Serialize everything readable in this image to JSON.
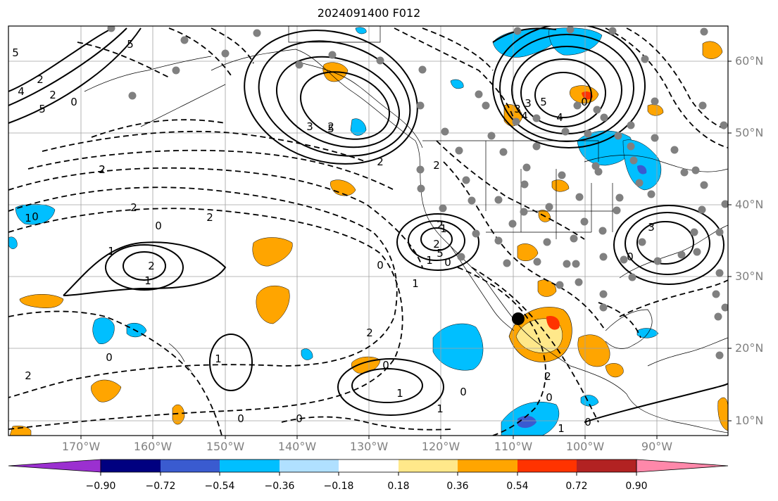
{
  "title": "2024091400 F012",
  "longitude_labels": [
    "170°W",
    "160°W",
    "150°W",
    "140°W",
    "130°W",
    "120°W",
    "110°W",
    "100°W",
    "90°W"
  ],
  "latitude_labels": [
    "60°N",
    "50°N",
    "40°N",
    "30°N",
    "20°N",
    "10°N"
  ],
  "colorbar": {
    "ticks": [
      "−0.90",
      "−0.72",
      "−0.54",
      "−0.36",
      "−0.18",
      "0.18",
      "0.36",
      "0.54",
      "0.72",
      "0.90"
    ],
    "colors": [
      "#9b30d0",
      "#000080",
      "#3a5bd0",
      "#00bfff",
      "#b0e0ff",
      "#ffffff",
      "#ffe88a",
      "#ffa500",
      "#ff3300",
      "#b22222",
      "#ff88aa"
    ]
  },
  "contour_labels": [
    "5",
    "4",
    "2",
    "5",
    "2",
    "5",
    "3",
    "2",
    "2",
    "0",
    "2",
    "1",
    "5",
    "3",
    "5",
    "4",
    "3",
    "0",
    "4",
    "2",
    "1",
    "0",
    "5",
    "2",
    "2",
    "2",
    "0",
    "1",
    "0",
    "2",
    "1",
    "2",
    "3",
    "0",
    "2",
    "1",
    "2",
    "1",
    "0",
    "1",
    "0",
    "2",
    "0",
    "0",
    "1",
    "0",
    "1",
    "0",
    "2",
    "0",
    "0",
    "1"
  ]
}
